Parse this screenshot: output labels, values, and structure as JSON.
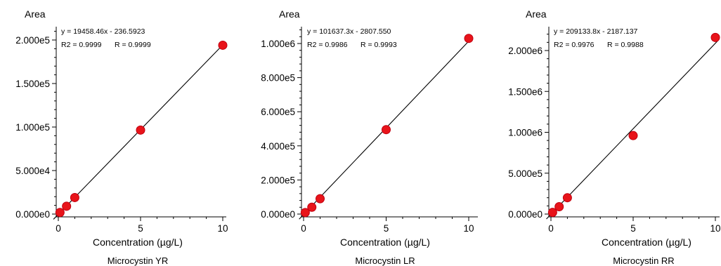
{
  "chart_data": [
    {
      "type": "scatter",
      "title": "Microcystin YR",
      "ylabel": "Area",
      "xlabel": "Concentration (µg/L)",
      "xlim": [
        0,
        10.2
      ],
      "ylim": [
        0,
        210000
      ],
      "x_ticks": [
        0,
        5,
        10
      ],
      "x_tick_labels": [
        "0",
        "5",
        "10"
      ],
      "y_ticks": [
        0,
        50000,
        100000,
        150000,
        200000
      ],
      "y_tick_labels": [
        "0.000e0",
        "5.000e4",
        "1.000e5",
        "1.500e5",
        "2.000e5"
      ],
      "equation": "y = 19458.46x - 236.5923",
      "r2": "R2 = 0.9999",
      "r": "R = 0.9999",
      "fit": {
        "slope": 19458.46,
        "intercept": -236.5923
      },
      "x": [
        0.1,
        0.5,
        1,
        5,
        10
      ],
      "y": [
        1800,
        9000,
        19000,
        96500,
        194000
      ],
      "marker_color": "#e8141a",
      "line_color": "#000000"
    },
    {
      "type": "scatter",
      "title": "Microcystin LR",
      "ylabel": "Area",
      "xlabel": "Concentration (µg/L)",
      "xlim": [
        0,
        10.2
      ],
      "ylim": [
        0,
        1100000
      ],
      "x_ticks": [
        0,
        5,
        10
      ],
      "x_tick_labels": [
        "0",
        "5",
        "10"
      ],
      "y_ticks": [
        0,
        200000,
        400000,
        600000,
        800000,
        1000000
      ],
      "y_tick_labels": [
        "0.000e0",
        "2.000e5",
        "4.000e5",
        "6.000e5",
        "8.000e5",
        "1.000e6"
      ],
      "equation": "y = 101637.3x - 2807.550",
      "r2": "R2 = 0.9986",
      "r": "R = 0.9993",
      "fit": {
        "slope": 101637.3,
        "intercept": -2807.55
      },
      "x": [
        0.1,
        0.5,
        1,
        5,
        10
      ],
      "y": [
        9000,
        40000,
        90000,
        495000,
        1030000
      ],
      "marker_color": "#e8141a",
      "line_color": "#000000"
    },
    {
      "type": "scatter",
      "title": "Microcystin RR",
      "ylabel": "Area",
      "xlabel": "Concentration (µg/L)",
      "xlim": [
        0,
        10.2
      ],
      "ylim": [
        0,
        2300000
      ],
      "x_ticks": [
        0,
        5,
        10
      ],
      "x_tick_labels": [
        "0",
        "5",
        "10"
      ],
      "y_ticks": [
        0,
        500000,
        1000000,
        1500000,
        2000000
      ],
      "y_tick_labels": [
        "0.000e0",
        "5.000e5",
        "1.000e6",
        "1.500e6",
        "2.000e6"
      ],
      "equation": "y = 209133.8x - 2187.137",
      "r2": "R2 = 0.9976",
      "r": "R = 0.9988",
      "fit": {
        "slope": 209133.8,
        "intercept": -2187.137
      },
      "x": [
        0.1,
        0.5,
        1,
        5,
        10
      ],
      "y": [
        20000,
        90000,
        200000,
        960000,
        2160000
      ],
      "marker_color": "#e8141a",
      "line_color": "#000000"
    }
  ]
}
